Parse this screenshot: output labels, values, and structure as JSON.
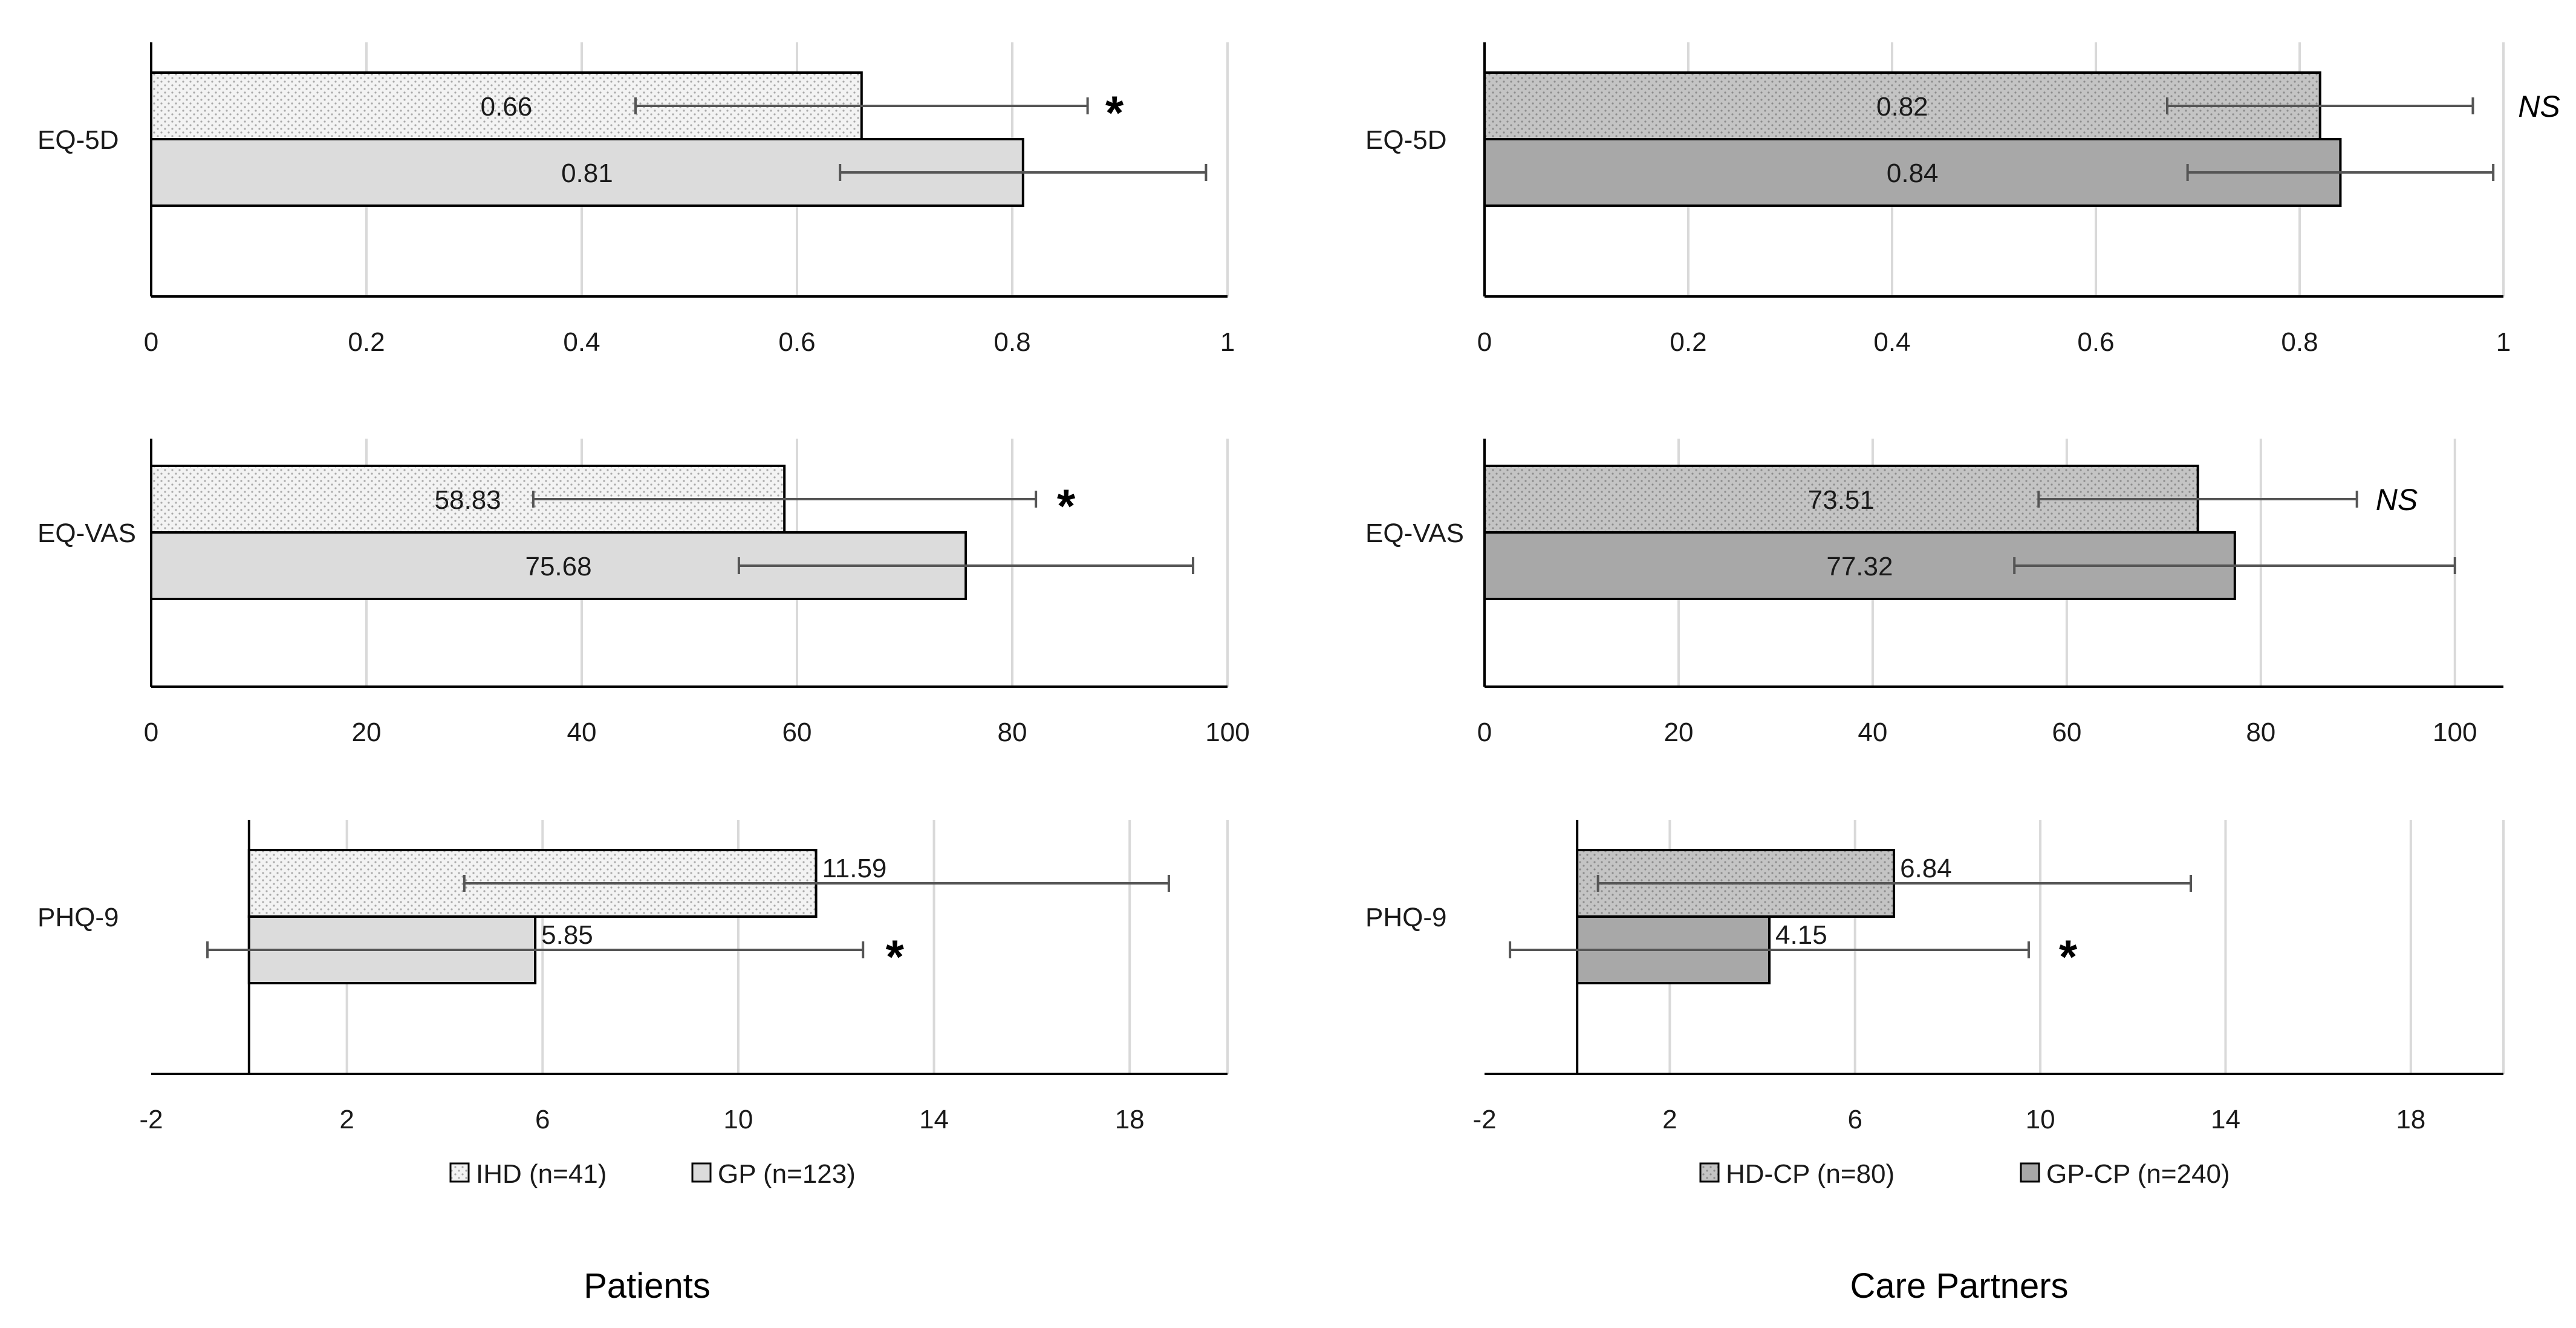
{
  "colors": {
    "grid": "#d9d9d9",
    "axis": "#000000",
    "bar_stroke": "#000000",
    "errorbar": "#555555",
    "ihd_fill": "#f3f3f3",
    "gp_fill": "#dcdcdc",
    "hdcp_fill": "#c4c4c4",
    "gpcp_fill": "#a8a8a8"
  },
  "column_titles": [
    "Patients",
    "Care Partners"
  ],
  "legends": [
    {
      "entries": [
        {
          "label": "IHD (n=41)",
          "pattern": "dots-light"
        },
        {
          "label": "GP (n=123)",
          "pattern": "solid-light"
        }
      ]
    },
    {
      "entries": [
        {
          "label": "HD-CP (n=80)",
          "pattern": "dots-mid"
        },
        {
          "label": "GP-CP (n=240)",
          "pattern": "solid-dark"
        }
      ]
    }
  ],
  "chart_data": [
    {
      "type": "bar",
      "orientation": "horizontal",
      "column": 0,
      "row": 0,
      "category": "EQ-5D",
      "xlim": [
        0,
        1
      ],
      "ticks": [
        0,
        0.2,
        0.4,
        0.6,
        0.8,
        1
      ],
      "tick_labels": [
        "0",
        "0.2",
        "0.4",
        "0.6",
        "0.8",
        "1"
      ],
      "baseline": 0,
      "label_mode": "center",
      "series": [
        {
          "name": "IHD (n=41)",
          "value": 0.66,
          "label": "0.66",
          "err_low": 0.45,
          "err_high": 0.87,
          "pattern": "dots-light"
        },
        {
          "name": "GP (n=123)",
          "value": 0.81,
          "label": "0.81",
          "err_low": 0.64,
          "err_high": 0.98,
          "pattern": "solid-light"
        }
      ],
      "significance": {
        "text": "*",
        "style": "star",
        "bar": 0,
        "at": 0.895
      }
    },
    {
      "type": "bar",
      "orientation": "horizontal",
      "column": 0,
      "row": 1,
      "category": "EQ-VAS",
      "xlim": [
        0,
        100
      ],
      "ticks": [
        0,
        20,
        40,
        60,
        80,
        100
      ],
      "tick_labels": [
        "0",
        "20",
        "40",
        "60",
        "80",
        "100"
      ],
      "baseline": 0,
      "label_mode": "center",
      "series": [
        {
          "name": "IHD (n=41)",
          "value": 58.83,
          "label": "58.83",
          "err_low": 35.5,
          "err_high": 82.2,
          "pattern": "dots-light"
        },
        {
          "name": "GP (n=123)",
          "value": 75.68,
          "label": "75.68",
          "err_low": 54.6,
          "err_high": 96.8,
          "pattern": "solid-light"
        }
      ],
      "significance": {
        "text": "*",
        "style": "star",
        "bar": 0,
        "at": 85
      }
    },
    {
      "type": "bar",
      "orientation": "horizontal",
      "column": 0,
      "row": 2,
      "category": "PHQ-9",
      "xlim": [
        -2,
        20
      ],
      "ticks": [
        -2,
        2,
        6,
        10,
        14,
        18
      ],
      "tick_labels": [
        "-2",
        "2",
        "6",
        "10",
        "14",
        "18"
      ],
      "gridlines": [
        2,
        6,
        10,
        14,
        18,
        20
      ],
      "baseline": 0,
      "label_mode": "outside",
      "series": [
        {
          "name": "IHD (n=41)",
          "value": 11.59,
          "label": "11.59",
          "err_low": 4.4,
          "err_high": 18.8,
          "pattern": "dots-light"
        },
        {
          "name": "GP (n=123)",
          "value": 5.85,
          "label": "5.85",
          "err_low": -0.85,
          "err_high": 12.55,
          "pattern": "solid-light"
        }
      ],
      "significance": {
        "text": "*",
        "style": "star",
        "bar": 1,
        "at": 13.2
      }
    },
    {
      "type": "bar",
      "orientation": "horizontal",
      "column": 1,
      "row": 0,
      "category": "EQ-5D",
      "xlim": [
        0,
        1
      ],
      "ticks": [
        0,
        0.2,
        0.4,
        0.6,
        0.8,
        1
      ],
      "tick_labels": [
        "0",
        "0.2",
        "0.4",
        "0.6",
        "0.8",
        "1"
      ],
      "baseline": 0,
      "label_mode": "center",
      "series": [
        {
          "name": "HD-CP (n=80)",
          "value": 0.82,
          "label": "0.82",
          "err_low": 0.67,
          "err_high": 0.97,
          "pattern": "dots-mid"
        },
        {
          "name": "GP-CP (n=240)",
          "value": 0.84,
          "label": "0.84",
          "err_low": 0.69,
          "err_high": 0.99,
          "pattern": "solid-dark"
        }
      ],
      "significance": {
        "text": "NS",
        "style": "italic",
        "bar": 0,
        "at": 1.035
      }
    },
    {
      "type": "bar",
      "orientation": "horizontal",
      "column": 1,
      "row": 1,
      "category": "EQ-VAS",
      "xlim": [
        0,
        105
      ],
      "ticks": [
        0,
        20,
        40,
        60,
        80,
        100
      ],
      "tick_labels": [
        "0",
        "20",
        "40",
        "60",
        "80",
        "100"
      ],
      "baseline": 0,
      "label_mode": "center",
      "series": [
        {
          "name": "HD-CP (n=80)",
          "value": 73.51,
          "label": "73.51",
          "err_low": 57.1,
          "err_high": 89.9,
          "pattern": "dots-mid"
        },
        {
          "name": "GP-CP (n=240)",
          "value": 77.32,
          "label": "77.32",
          "err_low": 54.6,
          "err_high": 100.0,
          "pattern": "solid-dark"
        }
      ],
      "significance": {
        "text": "NS",
        "style": "italic",
        "bar": 0,
        "at": 94
      }
    },
    {
      "type": "bar",
      "orientation": "horizontal",
      "column": 1,
      "row": 2,
      "category": "PHQ-9",
      "xlim": [
        -2,
        20
      ],
      "ticks": [
        -2,
        2,
        6,
        10,
        14,
        18
      ],
      "tick_labels": [
        "-2",
        "2",
        "6",
        "10",
        "14",
        "18"
      ],
      "gridlines": [
        2,
        6,
        10,
        14,
        18,
        20
      ],
      "baseline": 0,
      "label_mode": "outside",
      "series": [
        {
          "name": "HD-CP (n=80)",
          "value": 6.84,
          "label": "6.84",
          "err_low": 0.45,
          "err_high": 13.25,
          "pattern": "dots-mid"
        },
        {
          "name": "GP-CP (n=240)",
          "value": 4.15,
          "label": "4.15",
          "err_low": -1.45,
          "err_high": 9.75,
          "pattern": "solid-dark"
        }
      ],
      "significance": {
        "text": "*",
        "style": "star",
        "bar": 1,
        "at": 10.6
      }
    }
  ]
}
